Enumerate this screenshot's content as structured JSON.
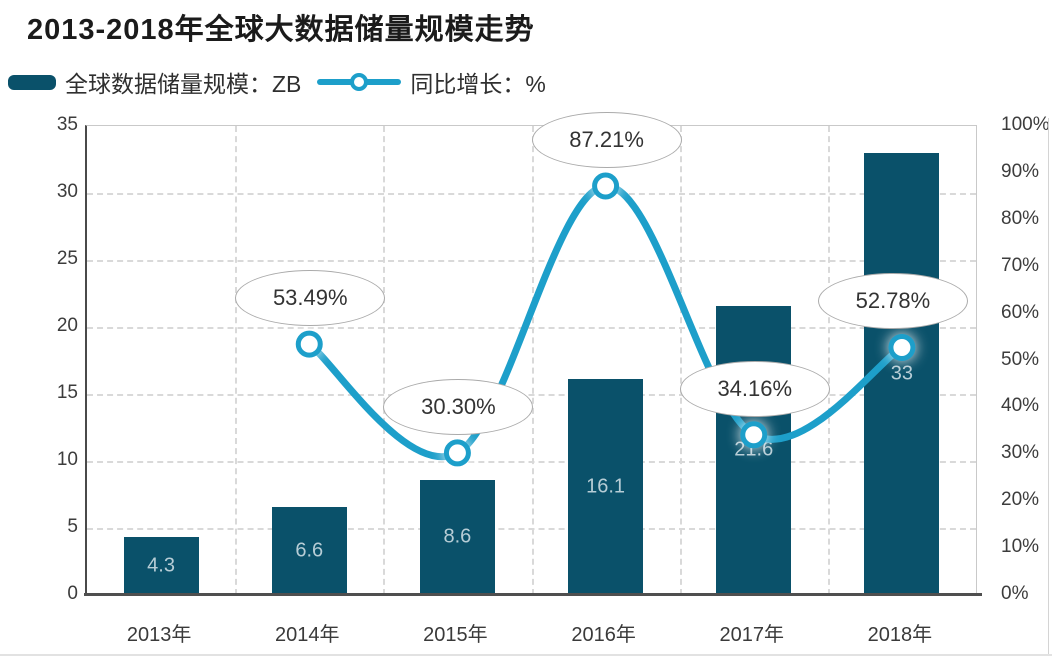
{
  "title": "2013-2018年全球大数据储量规模走势",
  "legend": {
    "bar_label": "全球数据储量规模：ZB",
    "line_label": "同比增长：%"
  },
  "colors": {
    "bar": "#0a516a",
    "line": "#1d9fca",
    "bar_value_label": "#b7cdd6",
    "grid": "#d9d9d9",
    "axis_text": "#3c3c3c",
    "callout_border": "#ababab",
    "callout_text": "#333333"
  },
  "chart_data": {
    "type": "bar+line",
    "title": "2013-2018年全球大数据储量规模走势",
    "categories": [
      "2013年",
      "2014年",
      "2015年",
      "2016年",
      "2017年",
      "2018年"
    ],
    "series": [
      {
        "name": "全球数据储量规模：ZB",
        "type": "bar",
        "axis": "left",
        "values": [
          4.3,
          6.6,
          8.6,
          16.1,
          21.6,
          33
        ],
        "value_labels": [
          "4.3",
          "6.6",
          "8.6",
          "16.1",
          "21.6",
          "33"
        ]
      },
      {
        "name": "同比增长：%",
        "type": "line",
        "axis": "right",
        "values": [
          null,
          53.49,
          30.3,
          87.21,
          34.16,
          52.78
        ],
        "value_labels": [
          null,
          "53.49%",
          "30.30%",
          "87.21%",
          "34.16%",
          "52.78%"
        ]
      }
    ],
    "left_axis": {
      "min": 0,
      "max": 35,
      "tick_step": 5,
      "ticks": [
        "35",
        "30",
        "25",
        "20",
        "15",
        "10",
        "5",
        "0"
      ]
    },
    "right_axis": {
      "min": 0,
      "max": 100,
      "tick_step": 10,
      "ticks": [
        "100%",
        "90%",
        "80%",
        "70%",
        "60%",
        "50%",
        "40%",
        "30%",
        "20%",
        "10%",
        "0%"
      ]
    },
    "grid": "dashed",
    "legend_position": "top-left"
  }
}
